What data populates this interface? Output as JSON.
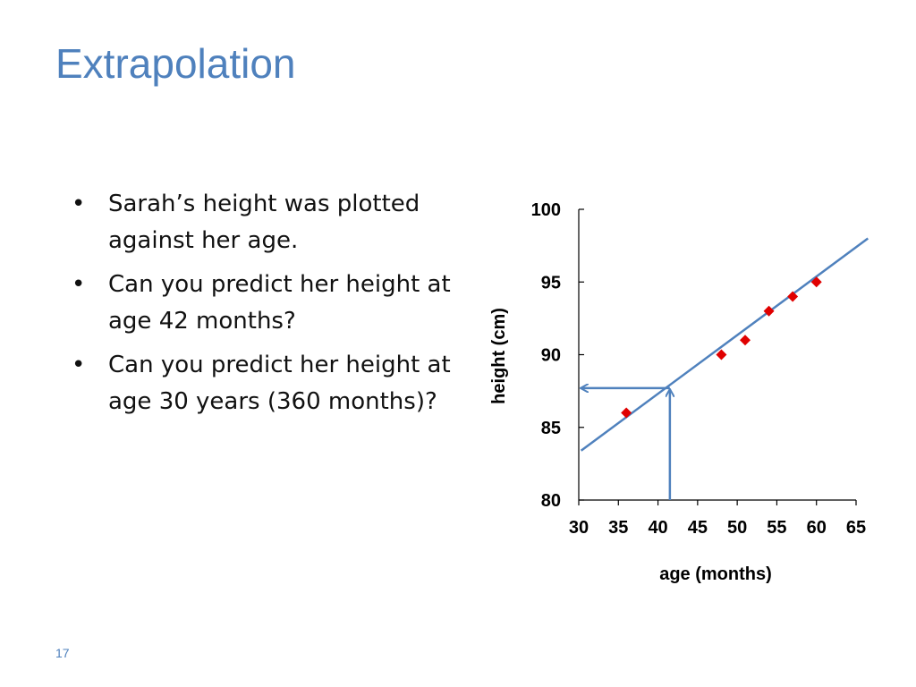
{
  "slide": {
    "title": "Extrapolation",
    "bullets": [
      "Sarah’s height was plotted against her age.",
      "Can you predict her height at age 42 months?",
      "Can you predict her height at age 30 years (360 months)?"
    ],
    "bullet_glyph": "•",
    "slide_number": "17"
  },
  "chart_data": {
    "type": "scatter",
    "xlabel": "age (months)",
    "ylabel": "height (cm)",
    "xlim": [
      30,
      65
    ],
    "ylim": [
      80,
      100
    ],
    "xticks": [
      "30",
      "35",
      "40",
      "45",
      "50",
      "55",
      "60",
      "65"
    ],
    "yticks": [
      "80",
      "85",
      "90",
      "95",
      "100"
    ],
    "grid": false,
    "points": [
      {
        "x": 36,
        "y": 86
      },
      {
        "x": 48,
        "y": 90
      },
      {
        "x": 51,
        "y": 91
      },
      {
        "x": 54,
        "y": 93
      },
      {
        "x": 57,
        "y": 94
      },
      {
        "x": 60,
        "y": 95
      }
    ],
    "trendline": {
      "x1": 30.3,
      "y1": 83.4,
      "x2": 66.5,
      "y2": 98.0
    },
    "extrapolation": {
      "x": 41.5,
      "y": 87.7
    },
    "colors": {
      "points": "#e00000",
      "trendline": "#4f81bd",
      "arrows": "#4f81bd"
    }
  }
}
